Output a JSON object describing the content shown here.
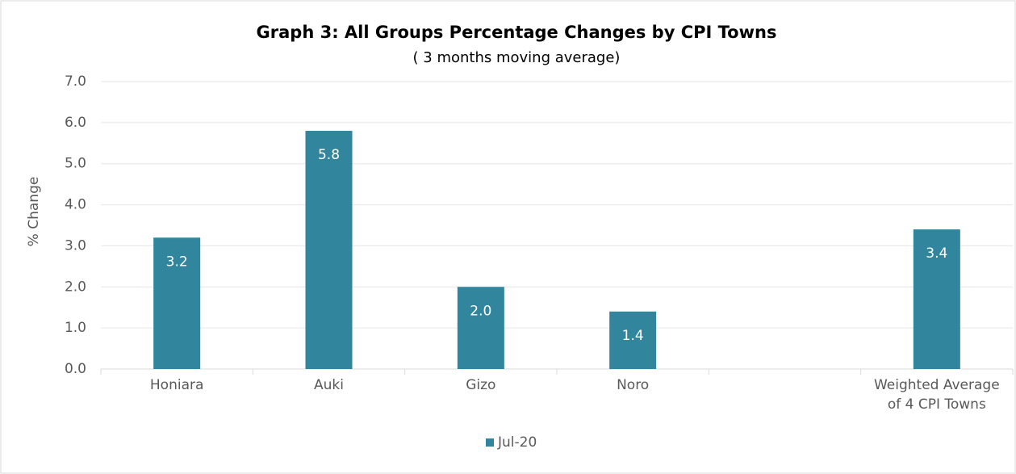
{
  "chart_data": {
    "type": "bar",
    "title": "Graph 3: All Groups Percentage Changes by CPI Towns",
    "subtitle": "( 3 months moving average)",
    "y_label": "% Change",
    "categories": [
      "Honiara",
      "Auki",
      "Gizo",
      "Noro",
      null,
      "Weighted Average of 4 CPI Towns"
    ],
    "series": [
      {
        "name": "Jul-20",
        "color": "#31859c",
        "values": [
          3.2,
          5.8,
          2.0,
          1.4,
          null,
          3.4
        ],
        "value_labels": [
          "3.2",
          "5.8",
          "2.0",
          "1.4",
          null,
          "3.4"
        ]
      }
    ],
    "ylim": [
      0,
      7
    ],
    "yticks": [
      {
        "value": 0,
        "label": "0.0"
      },
      {
        "value": 1,
        "label": "1.0"
      },
      {
        "value": 2,
        "label": "2.0"
      },
      {
        "value": 3,
        "label": "3.0"
      },
      {
        "value": 4,
        "label": "4.0"
      },
      {
        "value": 5,
        "label": "5.0"
      },
      {
        "value": 6,
        "label": "6.0"
      },
      {
        "value": 7,
        "label": "7.0"
      }
    ],
    "grid": true,
    "legend": "bottom"
  }
}
